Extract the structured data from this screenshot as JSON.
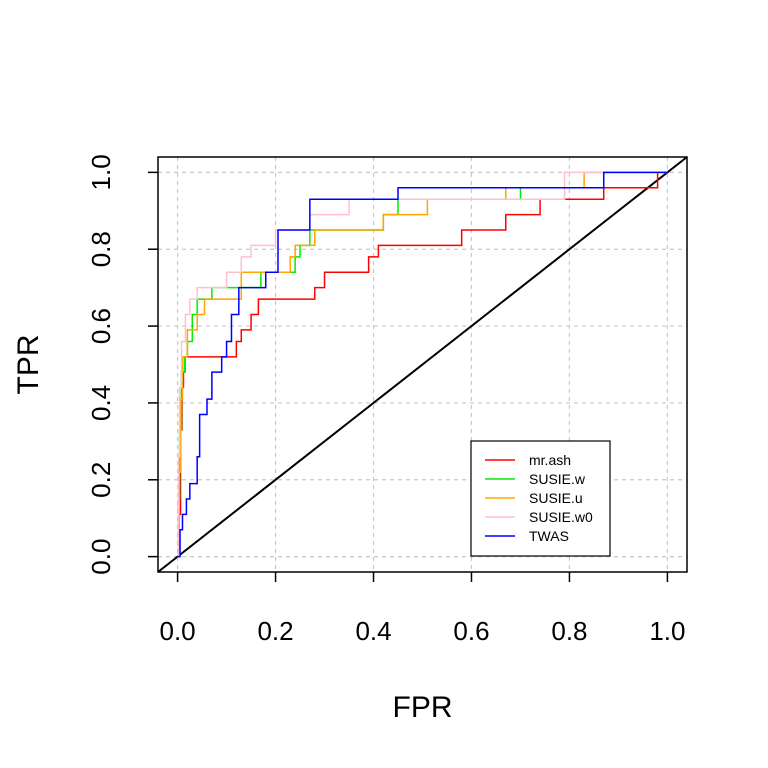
{
  "chart_data": {
    "type": "line",
    "title": "",
    "xlabel": "FPR",
    "ylabel": "TPR",
    "xlim": [
      -0.04,
      1.04
    ],
    "ylim": [
      -0.04,
      1.04
    ],
    "xticks": [
      "0.0",
      "0.2",
      "0.4",
      "0.6",
      "0.8",
      "1.0"
    ],
    "yticks": [
      "0.0",
      "0.2",
      "0.4",
      "0.6",
      "0.8",
      "1.0"
    ],
    "grid": true,
    "legend_position": "bottom-right",
    "reference_line": {
      "x": [
        0,
        1
      ],
      "y": [
        0,
        1
      ],
      "color": "#000000"
    },
    "series": [
      {
        "name": "mr.ash",
        "color": "#ff0000",
        "x": [
          0,
          0.003,
          0.006,
          0.009,
          0.012,
          0.015,
          0.03,
          0.06,
          0.12,
          0.13,
          0.15,
          0.165,
          0.175,
          0.28,
          0.3,
          0.39,
          0.41,
          0.58,
          0.67,
          0.74,
          0.87,
          0.98,
          1.0
        ],
        "y": [
          0,
          0.11,
          0.33,
          0.44,
          0.48,
          0.52,
          0.52,
          0.52,
          0.56,
          0.59,
          0.63,
          0.67,
          0.67,
          0.7,
          0.74,
          0.78,
          0.81,
          0.85,
          0.89,
          0.93,
          0.96,
          1.0,
          1.0
        ]
      },
      {
        "name": "SUSIE.w",
        "color": "#00ee00",
        "x": [
          0,
          0.002,
          0.004,
          0.008,
          0.014,
          0.02,
          0.03,
          0.04,
          0.07,
          0.09,
          0.12,
          0.17,
          0.24,
          0.25,
          0.27,
          0.42,
          0.45,
          0.7,
          0.87,
          1.0
        ],
        "y": [
          0,
          0.15,
          0.33,
          0.48,
          0.52,
          0.56,
          0.63,
          0.67,
          0.7,
          0.7,
          0.7,
          0.74,
          0.78,
          0.81,
          0.85,
          0.89,
          0.93,
          0.96,
          1.0,
          1.0
        ]
      },
      {
        "name": "SUSIE.u",
        "color": "#ffa500",
        "x": [
          0,
          0.003,
          0.006,
          0.01,
          0.02,
          0.04,
          0.055,
          0.065,
          0.13,
          0.23,
          0.24,
          0.28,
          0.42,
          0.51,
          0.67,
          0.83,
          1.0
        ],
        "y": [
          0,
          0.22,
          0.41,
          0.52,
          0.59,
          0.63,
          0.67,
          0.67,
          0.74,
          0.78,
          0.81,
          0.85,
          0.89,
          0.93,
          0.96,
          1.0,
          1.0
        ]
      },
      {
        "name": "SUSIE.w0",
        "color": "#ffc0cb",
        "x": [
          0,
          0.002,
          0.004,
          0.008,
          0.016,
          0.025,
          0.04,
          0.1,
          0.13,
          0.15,
          0.2,
          0.27,
          0.35,
          0.55,
          0.79,
          1.0
        ],
        "y": [
          0,
          0.26,
          0.44,
          0.56,
          0.63,
          0.67,
          0.7,
          0.74,
          0.78,
          0.81,
          0.85,
          0.89,
          0.93,
          0.93,
          1.0,
          1.0
        ]
      },
      {
        "name": "TWAS",
        "color": "#0000ff",
        "x": [
          0,
          0.005,
          0.01,
          0.018,
          0.025,
          0.04,
          0.045,
          0.06,
          0.07,
          0.09,
          0.1,
          0.11,
          0.125,
          0.18,
          0.205,
          0.27,
          0.45,
          0.65,
          0.87,
          1.0
        ],
        "y": [
          0,
          0.07,
          0.11,
          0.15,
          0.19,
          0.26,
          0.37,
          0.41,
          0.48,
          0.52,
          0.56,
          0.63,
          0.7,
          0.74,
          0.85,
          0.93,
          0.96,
          0.96,
          1.0,
          1.0
        ]
      }
    ]
  }
}
